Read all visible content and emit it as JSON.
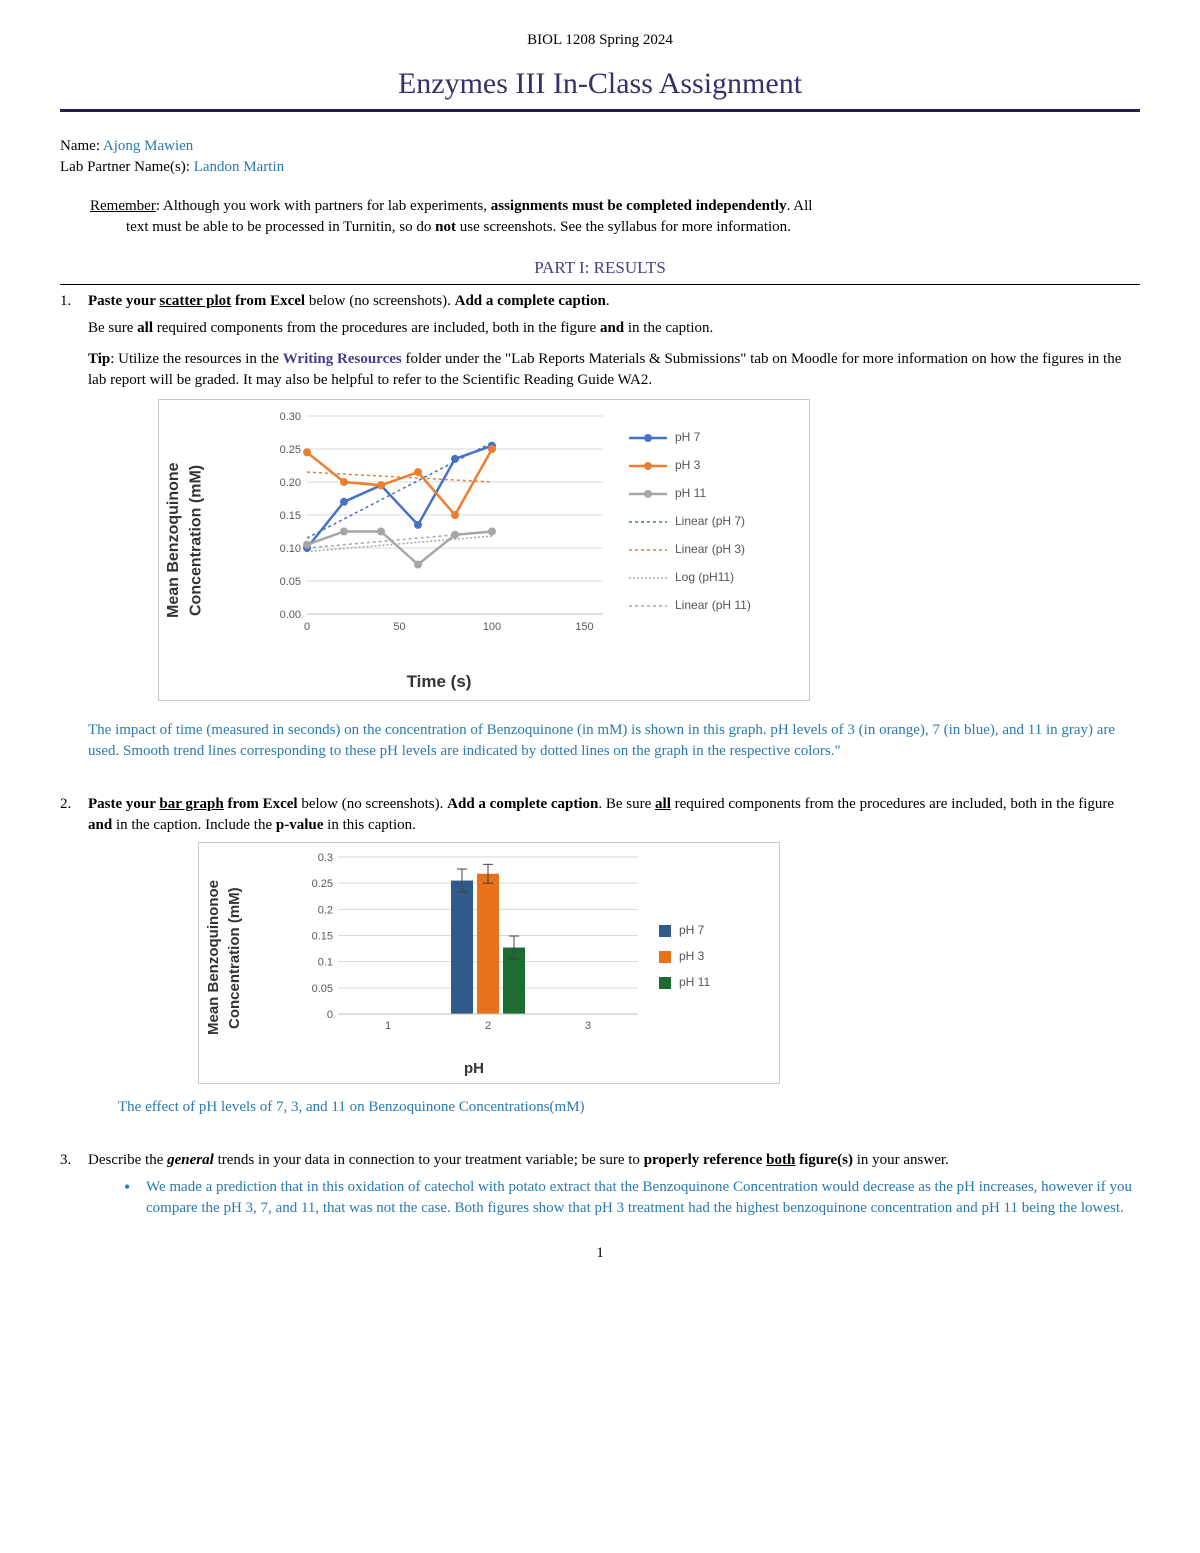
{
  "course_header": "BIOL 1208 Spring 2024",
  "doc_title": "Enzymes III In-Class Assignment",
  "name_label": "Name: ",
  "name_value": "Ajong Mawien",
  "partner_label": "Lab Partner Name(s): ",
  "partner_value": "Landon Martin",
  "remember_lead": "Remember",
  "remember_1": ": Although you work with partners for lab experiments, ",
  "remember_bold": "assignments must be completed independently",
  "remember_2": ". All",
  "remember_line2a": "text must be able to be processed in Turnitin, so do ",
  "remember_not": "not",
  "remember_line2b": " use screenshots. See the syllabus for more information.",
  "part1_heading": "PART I: RESULTS",
  "q1": {
    "num": "1.",
    "line1_a": "Paste your ",
    "line1_b": "scatter plot",
    "line1_c": " from Excel",
    "line1_d": " below (no screenshots). ",
    "line1_e": "Add a complete caption",
    "line1_f": ".",
    "line2_a": "Be sure ",
    "line2_b": "all",
    "line2_c": " required components from the procedures are included, both in the figure ",
    "line2_d": "and",
    "line2_e": " in the caption.",
    "tip_a": "Tip",
    "tip_b": ": Utilize the resources in the ",
    "tip_link": "Writing Resources",
    "tip_c": " folder under the \"Lab Reports Materials & Submissions\" tab on Moodle for more information on how the figures in the lab report will be graded. It may also be helpful to refer to the Scientific Reading Guide WA2."
  },
  "chart1": {
    "type": "line-scatter",
    "y_title": "Mean Benzoquinone Concentration (mM)",
    "x_title": "Time (s)",
    "x_ticks": [
      0,
      50,
      100,
      150
    ],
    "x_domain": [
      0,
      160
    ],
    "y_ticks": [
      "0.00",
      "0.05",
      "0.10",
      "0.15",
      "0.20",
      "0.25",
      "0.30"
    ],
    "y_domain": [
      0,
      0.3
    ],
    "grid_color": "#d9d9d9",
    "series": {
      "ph7": {
        "label": "pH 7",
        "color": "#4472c4",
        "x": [
          0,
          20,
          40,
          60,
          80,
          100
        ],
        "y": [
          0.1,
          0.17,
          0.195,
          0.135,
          0.235,
          0.255
        ]
      },
      "ph3": {
        "label": "pH 3",
        "color": "#ed7d31",
        "x": [
          0,
          20,
          40,
          60,
          80,
          100
        ],
        "y": [
          0.245,
          0.2,
          0.195,
          0.215,
          0.15,
          0.25
        ]
      },
      "ph11": {
        "label": "pH 11",
        "color": "#a6a6a6",
        "x": [
          0,
          20,
          40,
          60,
          80,
          100
        ],
        "y": [
          0.105,
          0.125,
          0.125,
          0.075,
          0.12,
          0.125
        ]
      }
    },
    "trends": {
      "linear_ph7": {
        "label": "Linear (pH 7)",
        "color": "#4472c4",
        "dash": "3,3",
        "pts": [
          [
            0,
            0.115
          ],
          [
            100,
            0.26
          ]
        ]
      },
      "linear_ph3": {
        "label": "Linear (pH 3)",
        "color": "#ed7d31",
        "dash": "3,3",
        "pts": [
          [
            0,
            0.215
          ],
          [
            100,
            0.2
          ]
        ]
      },
      "log_ph11": {
        "label": "Log (pH11)",
        "color": "#a6a6a6",
        "dash": "2,2",
        "pts": [
          [
            2,
            0.095
          ],
          [
            100,
            0.118
          ]
        ]
      },
      "linear_ph11": {
        "label": "Linear (pH 11)",
        "color": "#a6a6a6",
        "dash": "3,3",
        "pts": [
          [
            0,
            0.1
          ],
          [
            100,
            0.125
          ]
        ]
      }
    }
  },
  "caption1": "The impact of time (measured in seconds) on the concentration of Benzoquinone (in mM) is shown in this graph. pH levels of 3 (in orange), 7 (in blue), and 11 in gray) are used. Smooth trend lines corresponding to these pH levels are indicated by dotted lines on the graph in the respective colors.\"",
  "q2": {
    "num": "2.",
    "a": "Paste your ",
    "b": "bar graph",
    "c": " from Excel",
    "d": " below (no screenshots). ",
    "e": "Add a complete caption",
    "f": ". Be sure ",
    "g": "all",
    "h": " required components from the procedures are included, both in the figure ",
    "i": "and",
    "j": " in the caption. Include the ",
    "k": "p-value",
    "l": " in this caption."
  },
  "chart2": {
    "type": "bar",
    "y_title": "Mean Benzoquinonoe Concentration (mM)",
    "x_title": "pH",
    "x_labels": [
      "1",
      "2",
      "3"
    ],
    "y_ticks": [
      "0",
      "0.05",
      "0.1",
      "0.15",
      "0.2",
      "0.25",
      "0.3"
    ],
    "y_domain": [
      0,
      0.3
    ],
    "grid_color": "#d9d9d9",
    "bars": [
      {
        "label": "pH 7",
        "color": "#2e5b8a",
        "value": 0.255,
        "err": 0.022
      },
      {
        "label": "pH 3",
        "color": "#e8711c",
        "value": 0.268,
        "err": 0.018
      },
      {
        "label": "pH 11",
        "color": "#1e6b33",
        "value": 0.127,
        "err": 0.022
      }
    ]
  },
  "caption2": "The effect of pH levels of 7, 3, and 11 on Benzoquinone Concentrations(mM)",
  "q3": {
    "num": "3.",
    "a": "Describe the ",
    "b": "general",
    "c": " trends in your data in connection to your treatment variable; be sure to ",
    "d": "properly reference ",
    "e": "both",
    "f": " figure(s)",
    "g": " in your answer.",
    "bullet": "We made a prediction that in this oxidation of catechol with potato extract that the Benzoquinone Concentration would decrease as the pH increases, however if you compare the pH 3, 7, and 11, that was not the case. Both figures show that pH 3 treatment had the highest benzoquinone concentration and pH 11 being the lowest."
  },
  "pagenum": "1"
}
